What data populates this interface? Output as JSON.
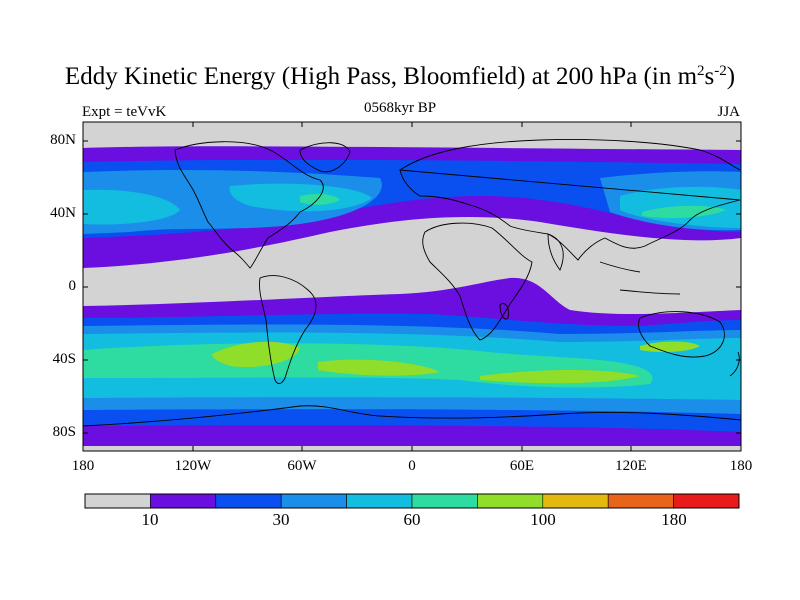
{
  "title": {
    "text": "Eddy Kinetic Energy (High Pass, Bloomfield) at 200 hPa (in m",
    "sup1": "2",
    "mid": "s",
    "sup2": "-2",
    "end": ")"
  },
  "subtitle": "0568kyr BP",
  "left_label": "Expt = teVvK",
  "right_label": "JJA",
  "axes": {
    "lat_labels": [
      "80N",
      "40N",
      "0",
      "40S",
      "80S"
    ],
    "lon_labels": [
      "180",
      "120W",
      "60W",
      "0",
      "60E",
      "120E",
      "180"
    ]
  },
  "colorbar": {
    "colors": [
      "#d3d3d3",
      "#6a0fe0",
      "#0a4ff0",
      "#1a8ee8",
      "#12bde0",
      "#2edba0",
      "#90dd2a",
      "#e2b90e",
      "#e8641a",
      "#e81a1a"
    ],
    "labels": [
      "10",
      "30",
      "60",
      "100",
      "180"
    ]
  }
}
